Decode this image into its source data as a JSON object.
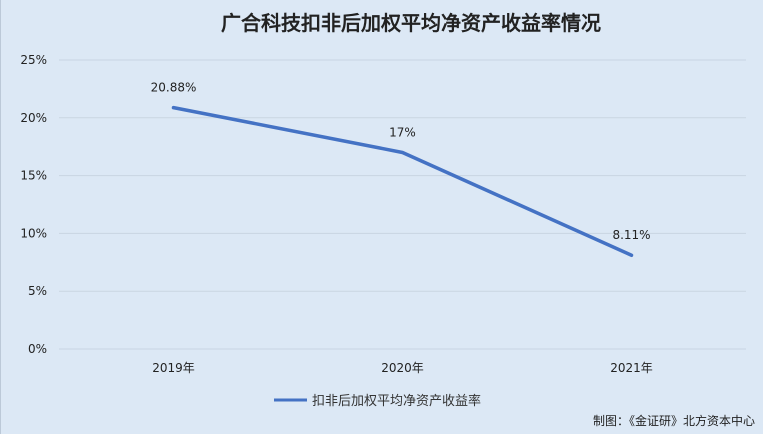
{
  "chart_data": {
    "type": "line",
    "title": "广合科技扣非后加权平均净资产收益率情况",
    "categories": [
      "2019年",
      "2020年",
      "2021年"
    ],
    "series": [
      {
        "name": "扣非后加权平均净资产收益率",
        "values": [
          20.88,
          17,
          8.11
        ],
        "labels": [
          "20.88%",
          "17%",
          "8.11%"
        ],
        "color": "#4472c4"
      }
    ],
    "ylim": [
      0,
      25
    ],
    "yticks": [
      0,
      5,
      10,
      15,
      20,
      25
    ],
    "ytick_labels": [
      "0%",
      "5%",
      "10%",
      "15%",
      "20%",
      "25%"
    ],
    "grid": true,
    "legend_position": "bottom"
  },
  "source": "制图：《金证研》北方资本中心",
  "colors": {
    "background": "#dce8f5",
    "grid": "#c9d5e2",
    "line": "#4472c4"
  }
}
